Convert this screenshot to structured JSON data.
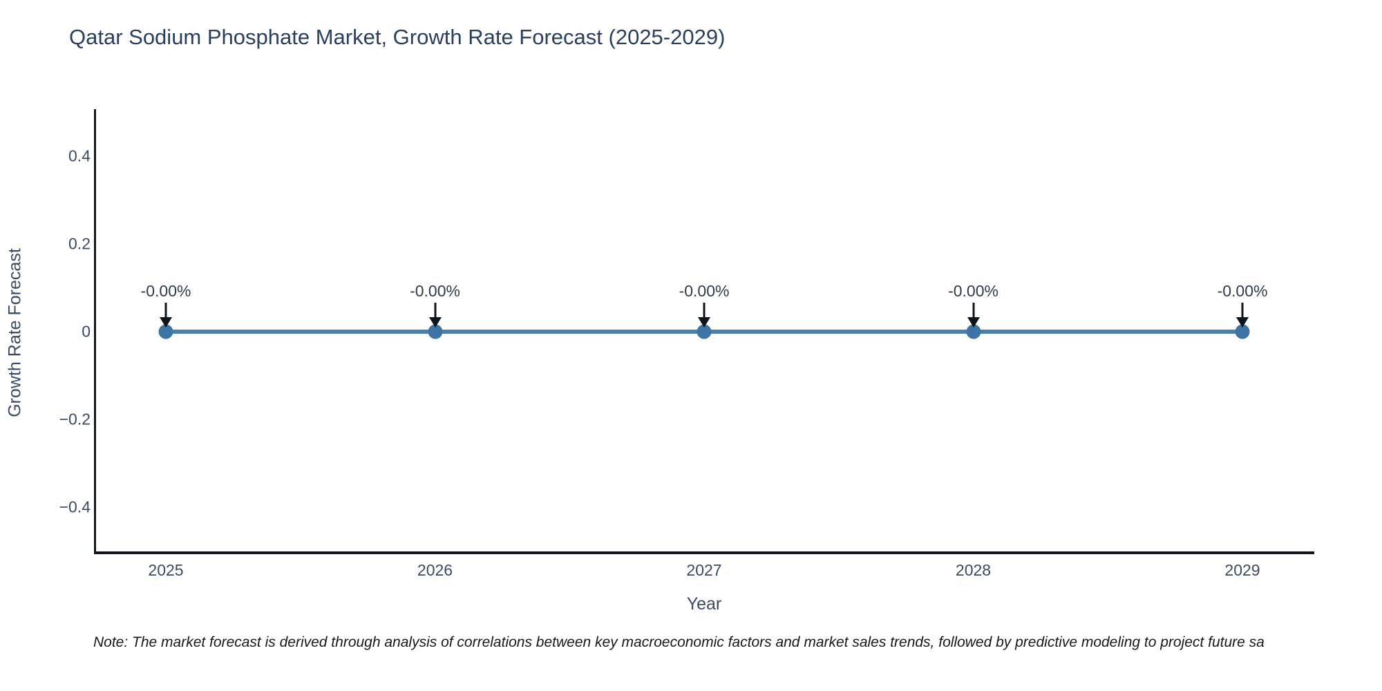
{
  "title": "Qatar Sodium Phosphate Market, Growth Rate Forecast (2025-2029)",
  "note": "Note: The market forecast is derived through analysis of correlations between key macroeconomic factors and market sales trends, followed by predictive modeling to project future sa",
  "chart_data": {
    "type": "line",
    "title": "Qatar Sodium Phosphate Market, Growth Rate Forecast (2025-2029)",
    "x": [
      2025,
      2026,
      2027,
      2028,
      2029
    ],
    "categories": [
      "2025",
      "2026",
      "2027",
      "2028",
      "2029"
    ],
    "series": [
      {
        "name": "Growth Rate Forecast",
        "values": [
          0,
          0,
          0,
          0,
          0
        ]
      }
    ],
    "point_labels": [
      "-0.00%",
      "-0.00%",
      "-0.00%",
      "-0.00%",
      "-0.00%"
    ],
    "xlabel": "Year",
    "ylabel": "Growth Rate Forecast",
    "ytick_labels": [
      "0.4",
      "0.2",
      "0",
      "−0.2",
      "−0.4"
    ],
    "ytick_values": [
      0.4,
      0.2,
      0,
      -0.2,
      -0.4
    ],
    "ylim": [
      -0.52,
      0.52
    ],
    "grid": false,
    "legend_position": "none",
    "colors": {
      "line": "#4a80b0",
      "marker": "#3c74a6",
      "arrow": "#10151c",
      "axis": "#10151c",
      "title_text": "#2a3f5f",
      "tick_text": "#3b4a63",
      "background": "#ffffff"
    }
  }
}
